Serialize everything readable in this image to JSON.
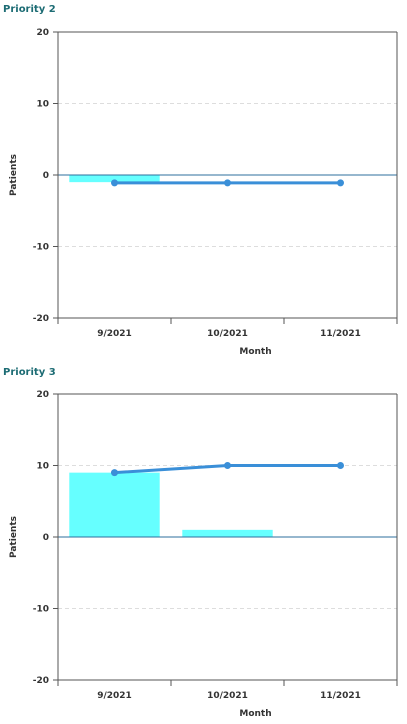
{
  "chart_data": [
    {
      "type": "bar+line",
      "title": "Priority 2",
      "xlabel": "Month",
      "ylabel": "Patients",
      "categories": [
        "9/2021",
        "10/2021",
        "11/2021"
      ],
      "ylim": [
        -20,
        20
      ],
      "yticks": [
        20,
        10,
        0,
        -10,
        -20
      ],
      "grid": "horizontal dashed",
      "bar_color": "#66ffff",
      "line_color": "#3a8fd8",
      "series": [
        {
          "kind": "bar",
          "values": [
            -1,
            0,
            0
          ]
        },
        {
          "kind": "line",
          "values": [
            -1.1,
            -1.1,
            -1.1
          ]
        }
      ]
    },
    {
      "type": "bar+line",
      "title": "Priority 3",
      "xlabel": "Month",
      "ylabel": "Patients",
      "categories": [
        "9/2021",
        "10/2021",
        "11/2021"
      ],
      "ylim": [
        -20,
        20
      ],
      "yticks": [
        20,
        10,
        0,
        -10,
        -20
      ],
      "grid": "horizontal dashed",
      "bar_color": "#66ffff",
      "line_color": "#3a8fd8",
      "series": [
        {
          "kind": "bar",
          "values": [
            9,
            1,
            0
          ]
        },
        {
          "kind": "line",
          "values": [
            9,
            10,
            10
          ]
        }
      ]
    }
  ]
}
